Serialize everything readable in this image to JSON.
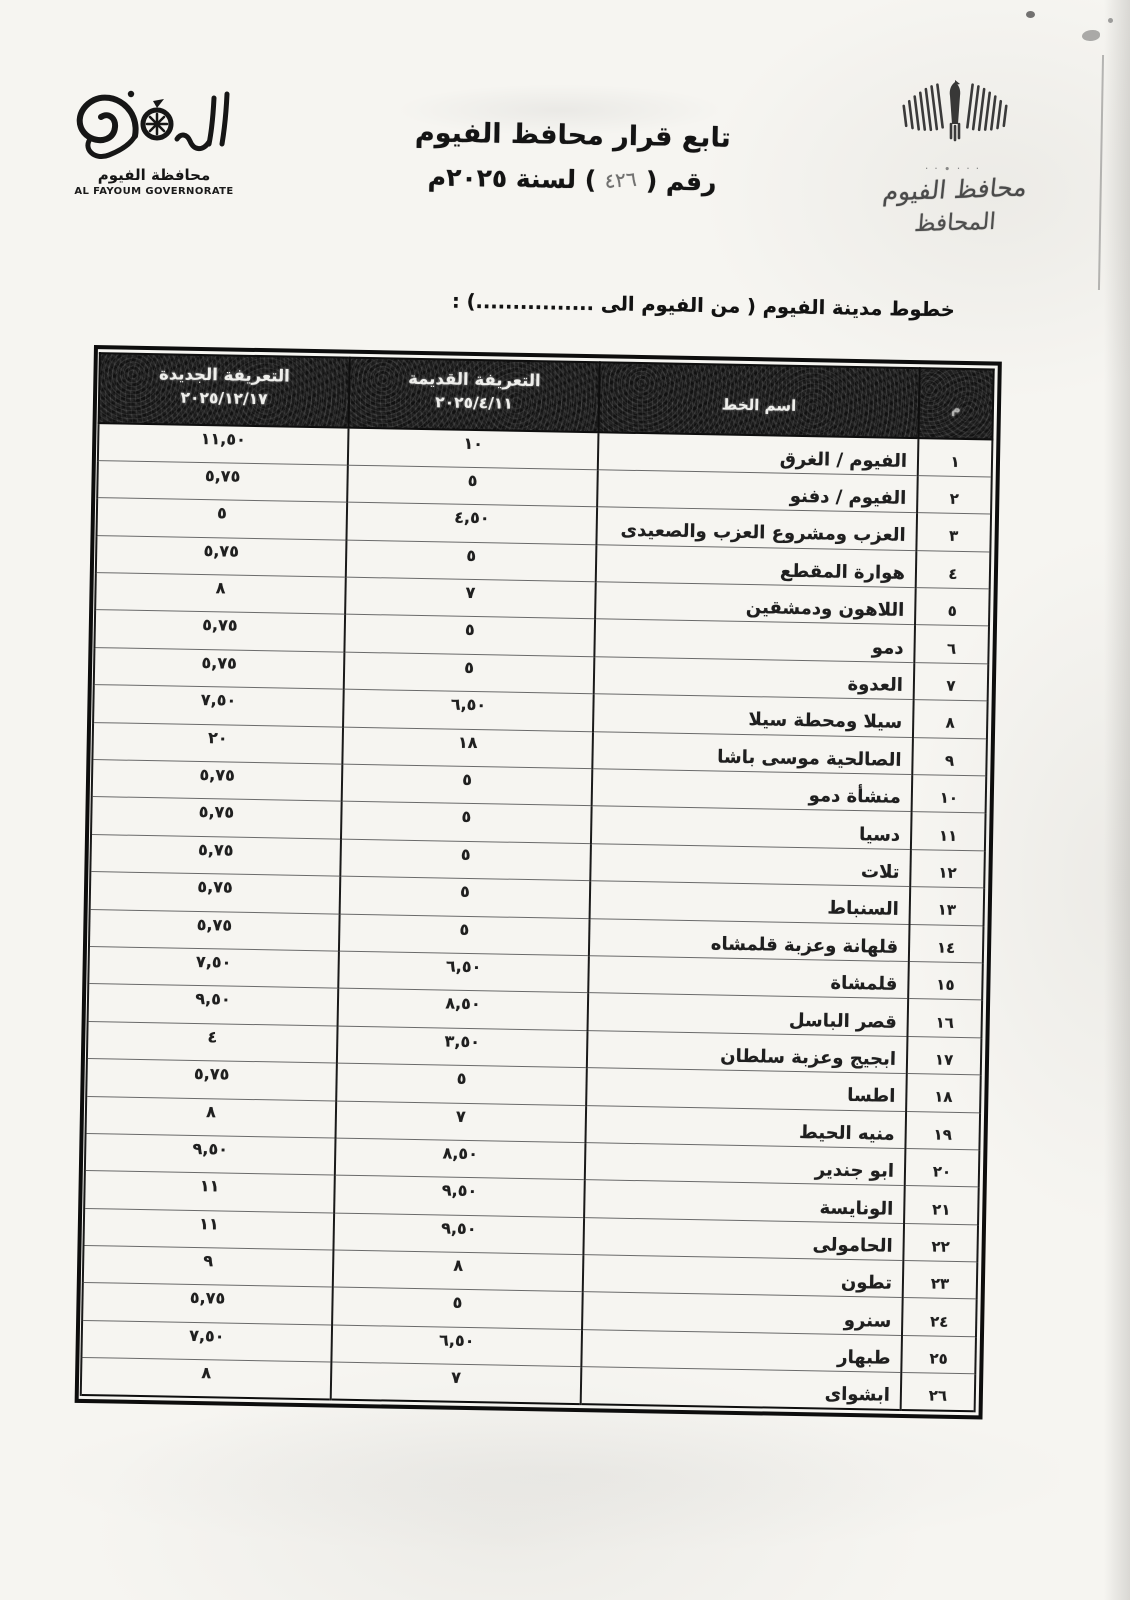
{
  "letterhead": {
    "logo": {
      "icon": "governorate-calligraphy-logo",
      "arabic_name": "محافظة الفيوم",
      "latin_name": "AL FAYOUM GOVERNORATE"
    },
    "title_line1": "تابع قرار محافظ الفيوم",
    "decree_prefix": "رقم (",
    "decree_number": "٤٢٦",
    "decree_suffix": ") لسنة ٢٠٢٥م",
    "stamp": {
      "icon": "eagle-emblem",
      "dots": "···∙··",
      "line1": "محافظ الفيوم",
      "line2": "المحافظ"
    }
  },
  "section_heading": "خطوط مدينة الفيوم ( من الفيوم الى ................) :",
  "table": {
    "columns": [
      {
        "title": "م"
      },
      {
        "title": "اسم الخط"
      },
      {
        "title": "التعريفة القديمة",
        "date": "٢٠٢٥/٤/١١"
      },
      {
        "title": "التعريفة الجديدة",
        "date": "٢٠٢٥/١٢/١٧"
      }
    ],
    "rows": [
      {
        "no": "١",
        "name": "الفيوم / الغرق",
        "old": "١٠",
        "new": "١١,٥٠"
      },
      {
        "no": "٢",
        "name": "الفيوم / دفنو",
        "old": "٥",
        "new": "٥,٧٥"
      },
      {
        "no": "٣",
        "name": "العزب ومشروع العزب والصعيدى",
        "old": "٤,٥٠",
        "new": "٥"
      },
      {
        "no": "٤",
        "name": "هوارة المقطع",
        "old": "٥",
        "new": "٥,٧٥"
      },
      {
        "no": "٥",
        "name": "اللاهون ودمشقين",
        "old": "٧",
        "new": "٨"
      },
      {
        "no": "٦",
        "name": "دمو",
        "old": "٥",
        "new": "٥,٧٥"
      },
      {
        "no": "٧",
        "name": "العدوة",
        "old": "٥",
        "new": "٥,٧٥"
      },
      {
        "no": "٨",
        "name": "سيلا ومحطة سيلا",
        "old": "٦,٥٠",
        "new": "٧,٥٠"
      },
      {
        "no": "٩",
        "name": "الصالحية موسى باشا",
        "old": "١٨",
        "new": "٢٠"
      },
      {
        "no": "١٠",
        "name": "منشأة دمو",
        "old": "٥",
        "new": "٥,٧٥"
      },
      {
        "no": "١١",
        "name": "دسيا",
        "old": "٥",
        "new": "٥,٧٥"
      },
      {
        "no": "١٢",
        "name": "تلات",
        "old": "٥",
        "new": "٥,٧٥"
      },
      {
        "no": "١٣",
        "name": "السنباط",
        "old": "٥",
        "new": "٥,٧٥"
      },
      {
        "no": "١٤",
        "name": "قلهانة وعزبة قلمشاه",
        "old": "٥",
        "new": "٥,٧٥"
      },
      {
        "no": "١٥",
        "name": "قلمشاة",
        "old": "٦,٥٠",
        "new": "٧,٥٠"
      },
      {
        "no": "١٦",
        "name": "قصر الباسل",
        "old": "٨,٥٠",
        "new": "٩,٥٠"
      },
      {
        "no": "١٧",
        "name": "ابجيج وعزبة سلطان",
        "old": "٣,٥٠",
        "new": "٤"
      },
      {
        "no": "١٨",
        "name": "اطسا",
        "old": "٥",
        "new": "٥,٧٥"
      },
      {
        "no": "١٩",
        "name": "منيه الحيط",
        "old": "٧",
        "new": "٨"
      },
      {
        "no": "٢٠",
        "name": "ابو جندير",
        "old": "٨,٥٠",
        "new": "٩,٥٠"
      },
      {
        "no": "٢١",
        "name": "الونايسة",
        "old": "٩,٥٠",
        "new": "١١"
      },
      {
        "no": "٢٢",
        "name": "الحامولى",
        "old": "٩,٥٠",
        "new": "١١"
      },
      {
        "no": "٢٣",
        "name": "تطون",
        "old": "٨",
        "new": "٩"
      },
      {
        "no": "٢٤",
        "name": "سنرو",
        "old": "٥",
        "new": "٥,٧٥"
      },
      {
        "no": "٢٥",
        "name": "طبهار",
        "old": "٦,٥٠",
        "new": "٧,٥٠"
      },
      {
        "no": "٢٦",
        "name": "ابشواى",
        "old": "٧",
        "new": "٨"
      }
    ]
  },
  "colors": {
    "ink": "#1d1d1d",
    "paper": "#f6f5f1",
    "header_band": "#1b1b1b",
    "header_text": "#efefec"
  }
}
